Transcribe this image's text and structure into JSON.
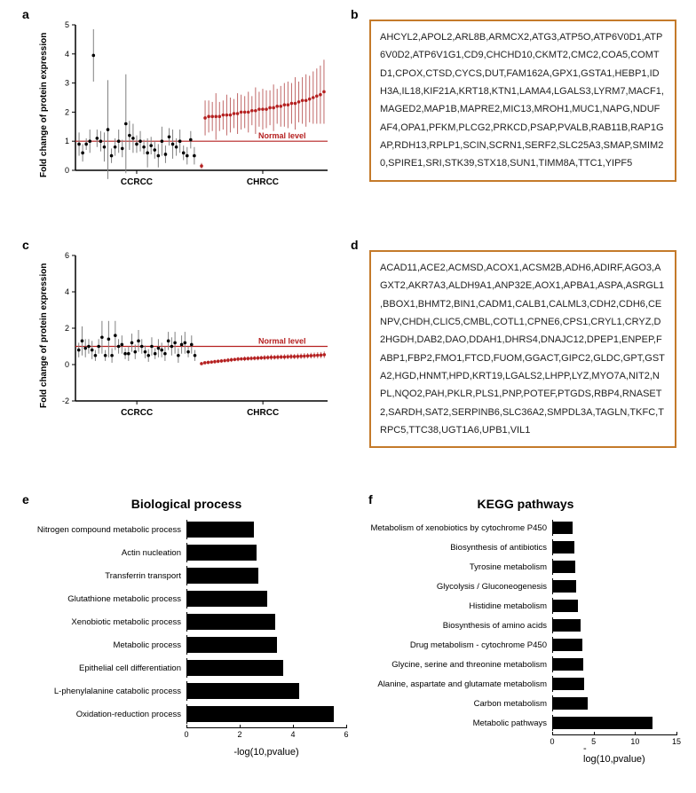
{
  "labels": {
    "a": "a",
    "b": "b",
    "c": "c",
    "d": "d",
    "e": "e",
    "f": "f"
  },
  "scatter_a": {
    "type": "scatter",
    "ylabel": "Fold change of protein expression",
    "yticks": [
      0,
      1,
      2,
      3,
      4,
      5
    ],
    "ylim": [
      0,
      5
    ],
    "normal_level_y": 1,
    "normal_label": "Normal level",
    "groups": [
      "CCRCC",
      "CHRCC"
    ],
    "colors": {
      "ccrcc": "#000000",
      "chrcc": "#b52020",
      "error": "#808080",
      "error_chrcc": "#c06868",
      "normal_line": "#b52020"
    },
    "ccrcc_points": [
      {
        "y": 0.9,
        "err": 0.4
      },
      {
        "y": 0.6,
        "err": 0.3
      },
      {
        "y": 0.9,
        "err": 0.2
      },
      {
        "y": 1.0,
        "err": 0.4
      },
      {
        "y": 3.95,
        "err": 0.9
      },
      {
        "y": 1.1,
        "err": 0.3
      },
      {
        "y": 1.0,
        "err": 0.35
      },
      {
        "y": 0.8,
        "err": 0.5
      },
      {
        "y": 1.4,
        "err": 1.7
      },
      {
        "y": 0.5,
        "err": 0.25
      },
      {
        "y": 0.8,
        "err": 0.3
      },
      {
        "y": 1.0,
        "err": 0.4
      },
      {
        "y": 0.75,
        "err": 0.3
      },
      {
        "y": 1.6,
        "err": 1.7
      },
      {
        "y": 1.2,
        "err": 0.5
      },
      {
        "y": 1.1,
        "err": 0.5
      },
      {
        "y": 0.9,
        "err": 0.3
      },
      {
        "y": 1.0,
        "err": 0.35
      },
      {
        "y": 0.8,
        "err": 0.25
      },
      {
        "y": 0.6,
        "err": 0.5
      },
      {
        "y": 0.85,
        "err": 0.3
      },
      {
        "y": 0.7,
        "err": 0.3
      },
      {
        "y": 0.5,
        "err": 0.4
      },
      {
        "y": 1.0,
        "err": 0.5
      },
      {
        "y": 0.55,
        "err": 0.3
      },
      {
        "y": 1.15,
        "err": 0.3
      },
      {
        "y": 0.9,
        "err": 0.5
      },
      {
        "y": 0.8,
        "err": 0.3
      },
      {
        "y": 1.0,
        "err": 0.4
      },
      {
        "y": 0.6,
        "err": 0.25
      },
      {
        "y": 0.5,
        "err": 0.3
      },
      {
        "y": 1.05,
        "err": 0.3
      },
      {
        "y": 0.5,
        "err": 0.3
      }
    ],
    "chrcc_points": [
      {
        "y": 0.15,
        "err": 0.1
      },
      {
        "y": 1.8,
        "err": 0.6
      },
      {
        "y": 1.85,
        "err": 0.55
      },
      {
        "y": 1.85,
        "err": 0.5
      },
      {
        "y": 1.85,
        "err": 0.8
      },
      {
        "y": 1.85,
        "err": 0.5
      },
      {
        "y": 1.9,
        "err": 0.5
      },
      {
        "y": 1.9,
        "err": 0.7
      },
      {
        "y": 1.9,
        "err": 0.6
      },
      {
        "y": 1.95,
        "err": 0.5
      },
      {
        "y": 1.95,
        "err": 0.7
      },
      {
        "y": 2.0,
        "err": 0.6
      },
      {
        "y": 2.0,
        "err": 0.55
      },
      {
        "y": 2.0,
        "err": 0.7
      },
      {
        "y": 2.05,
        "err": 0.5
      },
      {
        "y": 2.05,
        "err": 0.8
      },
      {
        "y": 2.1,
        "err": 0.6
      },
      {
        "y": 2.1,
        "err": 0.7
      },
      {
        "y": 2.1,
        "err": 0.65
      },
      {
        "y": 2.15,
        "err": 0.6
      },
      {
        "y": 2.15,
        "err": 0.8
      },
      {
        "y": 2.2,
        "err": 0.6
      },
      {
        "y": 2.2,
        "err": 0.7
      },
      {
        "y": 2.25,
        "err": 0.75
      },
      {
        "y": 2.25,
        "err": 0.8
      },
      {
        "y": 2.3,
        "err": 0.7
      },
      {
        "y": 2.3,
        "err": 0.9
      },
      {
        "y": 2.35,
        "err": 0.7
      },
      {
        "y": 2.4,
        "err": 0.8
      },
      {
        "y": 2.4,
        "err": 0.9
      },
      {
        "y": 2.45,
        "err": 0.8
      },
      {
        "y": 2.5,
        "err": 0.9
      },
      {
        "y": 2.55,
        "err": 0.95
      },
      {
        "y": 2.6,
        "err": 1.0
      },
      {
        "y": 2.7,
        "err": 1.1
      }
    ]
  },
  "genes_b": "AHCYL2,APOL2,ARL8B,ARMCX2,ATG3,ATP5O,ATP6V0D1,ATP6V0D2,ATP6V1G1,CD9,CHCHD10,CKMT2,CMC2,COA5,COMTD1,CPOX,CTSD,CYCS,DUT,FAM162A,GPX1,GSTA1,HEBP1,IDH3A,IL18,KIF21A,KRT18,KTN1,LAMA4,LGALS3,LYRM7,MACF1,MAGED2,MAP1B,MAPRE2,MIC13,MROH1,MUC1,NAPG,NDUFAF4,OPA1,PFKM,PLCG2,PRKCD,PSAP,PVALB,RAB11B,RAP1GAP,RDH13,RPLP1,SCIN,SCRN1,SERF2,SLC25A3,SMAP,SMIM20,SPIRE1,SRI,STK39,STX18,SUN1,TIMM8A,TTC1,YIPF5",
  "scatter_c": {
    "type": "scatter",
    "ylabel": "Fold change of protein expression",
    "yticks": [
      -2,
      0,
      2,
      4,
      6
    ],
    "ylim": [
      -2,
      6
    ],
    "normal_level_y": 1,
    "normal_label": "Normal level",
    "groups": [
      "CCRCC",
      "CHRCC"
    ],
    "colors": {
      "ccrcc": "#000000",
      "chrcc": "#b52020",
      "error": "#808080",
      "error_chrcc": "#c06868",
      "normal_line": "#b52020"
    },
    "ccrcc_points": [
      {
        "y": 0.8,
        "err": 0.4
      },
      {
        "y": 1.3,
        "err": 0.8
      },
      {
        "y": 0.9,
        "err": 0.5
      },
      {
        "y": 1.0,
        "err": 0.4
      },
      {
        "y": 0.8,
        "err": 0.5
      },
      {
        "y": 0.5,
        "err": 0.3
      },
      {
        "y": 1.0,
        "err": 0.4
      },
      {
        "y": 1.5,
        "err": 0.9
      },
      {
        "y": 0.5,
        "err": 0.3
      },
      {
        "y": 1.4,
        "err": 1.0
      },
      {
        "y": 0.5,
        "err": 0.4
      },
      {
        "y": 1.6,
        "err": 0.8
      },
      {
        "y": 1.0,
        "err": 0.4
      },
      {
        "y": 1.1,
        "err": 0.5
      },
      {
        "y": 0.6,
        "err": 0.3
      },
      {
        "y": 0.6,
        "err": 0.4
      },
      {
        "y": 1.2,
        "err": 0.5
      },
      {
        "y": 0.7,
        "err": 0.4
      },
      {
        "y": 1.3,
        "err": 0.6
      },
      {
        "y": 1.0,
        "err": 0.4
      },
      {
        "y": 0.7,
        "err": 0.35
      },
      {
        "y": 0.5,
        "err": 0.35
      },
      {
        "y": 1.0,
        "err": 0.5
      },
      {
        "y": 0.6,
        "err": 0.3
      },
      {
        "y": 0.9,
        "err": 0.5
      },
      {
        "y": 0.8,
        "err": 0.4
      },
      {
        "y": 0.6,
        "err": 0.4
      },
      {
        "y": 1.3,
        "err": 0.5
      },
      {
        "y": 1.0,
        "err": 0.5
      },
      {
        "y": 1.2,
        "err": 0.6
      },
      {
        "y": 0.5,
        "err": 0.4
      },
      {
        "y": 1.1,
        "err": 0.5
      },
      {
        "y": 1.2,
        "err": 0.6
      },
      {
        "y": 0.7,
        "err": 0.3
      },
      {
        "y": 1.1,
        "err": 0.5
      },
      {
        "y": 0.5,
        "err": 0.3
      }
    ],
    "chrcc_points": [
      {
        "y": 0.05,
        "err": 0.05
      },
      {
        "y": 0.1,
        "err": 0.07
      },
      {
        "y": 0.12,
        "err": 0.1
      },
      {
        "y": 0.14,
        "err": 0.08
      },
      {
        "y": 0.16,
        "err": 0.1
      },
      {
        "y": 0.18,
        "err": 0.1
      },
      {
        "y": 0.2,
        "err": 0.1
      },
      {
        "y": 0.22,
        "err": 0.1
      },
      {
        "y": 0.24,
        "err": 0.12
      },
      {
        "y": 0.26,
        "err": 0.12
      },
      {
        "y": 0.28,
        "err": 0.1
      },
      {
        "y": 0.3,
        "err": 0.12
      },
      {
        "y": 0.31,
        "err": 0.1
      },
      {
        "y": 0.32,
        "err": 0.13
      },
      {
        "y": 0.33,
        "err": 0.12
      },
      {
        "y": 0.34,
        "err": 0.12
      },
      {
        "y": 0.35,
        "err": 0.12
      },
      {
        "y": 0.36,
        "err": 0.13
      },
      {
        "y": 0.37,
        "err": 0.12
      },
      {
        "y": 0.38,
        "err": 0.14
      },
      {
        "y": 0.39,
        "err": 0.13
      },
      {
        "y": 0.4,
        "err": 0.15
      },
      {
        "y": 0.4,
        "err": 0.13
      },
      {
        "y": 0.41,
        "err": 0.14
      },
      {
        "y": 0.42,
        "err": 0.13
      },
      {
        "y": 0.42,
        "err": 0.15
      },
      {
        "y": 0.43,
        "err": 0.14
      },
      {
        "y": 0.44,
        "err": 0.15
      },
      {
        "y": 0.44,
        "err": 0.14
      },
      {
        "y": 0.45,
        "err": 0.16
      },
      {
        "y": 0.46,
        "err": 0.15
      },
      {
        "y": 0.47,
        "err": 0.16
      },
      {
        "y": 0.48,
        "err": 0.15
      },
      {
        "y": 0.49,
        "err": 0.16
      },
      {
        "y": 0.5,
        "err": 0.16
      },
      {
        "y": 0.51,
        "err": 0.17
      },
      {
        "y": 0.52,
        "err": 0.17
      },
      {
        "y": 0.54,
        "err": 0.18
      }
    ]
  },
  "genes_d": "ACAD11,ACE2,ACMSD,ACOX1,ACSM2B,ADH6,ADIRF,AGO3,AGXT2,AKR7A3,ALDH9A1,ANP32E,AOX1,APBA1,ASPA,ASRGL1,BBOX1,BHMT2,BIN1,CADM1,CALB1,CALML3,CDH2,CDH6,CENPV,CHDH,CLIC5,CMBL,COTL1,CPNE6,CPS1,CRYL1,CRYZ,D2HGDH,DAB2,DAO,DDAH1,DHRS4,DNAJC12,DPEP1,ENPEP,FABP1,FBP2,FMO1,FTCD,FUOM,GGACT,GIPC2,GLDC,GPT,GSTA2,HGD,HNMT,HPD,KRT19,LGALS2,LHPP,LYZ,MYO7A,NIT2,NPL,NQO2,PAH,PKLR,PLS1,PNP,POTEF,PTGDS,RBP4,RNASET2,SARDH,SAT2,SERPINB6,SLC36A2,SMPDL3A,TAGLN,TKFC,TRPC5,TTC38,UGT1A6,UPB1,VIL1",
  "bar_e": {
    "type": "bar",
    "title": "Biological process",
    "xlabel": "-log(10,pvalue)",
    "xlim": [
      0,
      6
    ],
    "xtick_step": 2,
    "bar_color": "#000000",
    "categories": [
      "Nitrogen compound metabolic process",
      "Actin nucleation",
      "Transferrin transport",
      "Glutathione metabolic process",
      "Xenobiotic metabolic process",
      "Metabolic process",
      "Epithelial cell differentiation",
      "L-phenylalanine catabolic process",
      "Oxidation-reduction process"
    ],
    "values": [
      2.5,
      2.6,
      2.65,
      3.0,
      3.3,
      3.35,
      3.6,
      4.2,
      5.5
    ]
  },
  "bar_f": {
    "type": "bar",
    "title": "KEGG pathways",
    "xlabel": "-log(10,pvalue)",
    "xlim": [
      0,
      15
    ],
    "xtick_step": 5,
    "bar_color": "#000000",
    "categories": [
      "Metabolism of xenobiotics by cytochrome P450",
      "Biosynthesis of antibiotics",
      "Tyrosine metabolism",
      "Glycolysis / Gluconeogenesis",
      "Histidine metabolism",
      "Biosynthesis of amino acids",
      "Drug metabolism - cytochrome P450",
      "Glycine, serine and threonine metabolism",
      "Alanine, aspartate and glutamate metabolism",
      "Carbon metabolism",
      "Metabolic pathways"
    ],
    "values": [
      2.4,
      2.6,
      2.7,
      2.75,
      3.0,
      3.3,
      3.5,
      3.6,
      3.7,
      4.2,
      12.0
    ]
  }
}
